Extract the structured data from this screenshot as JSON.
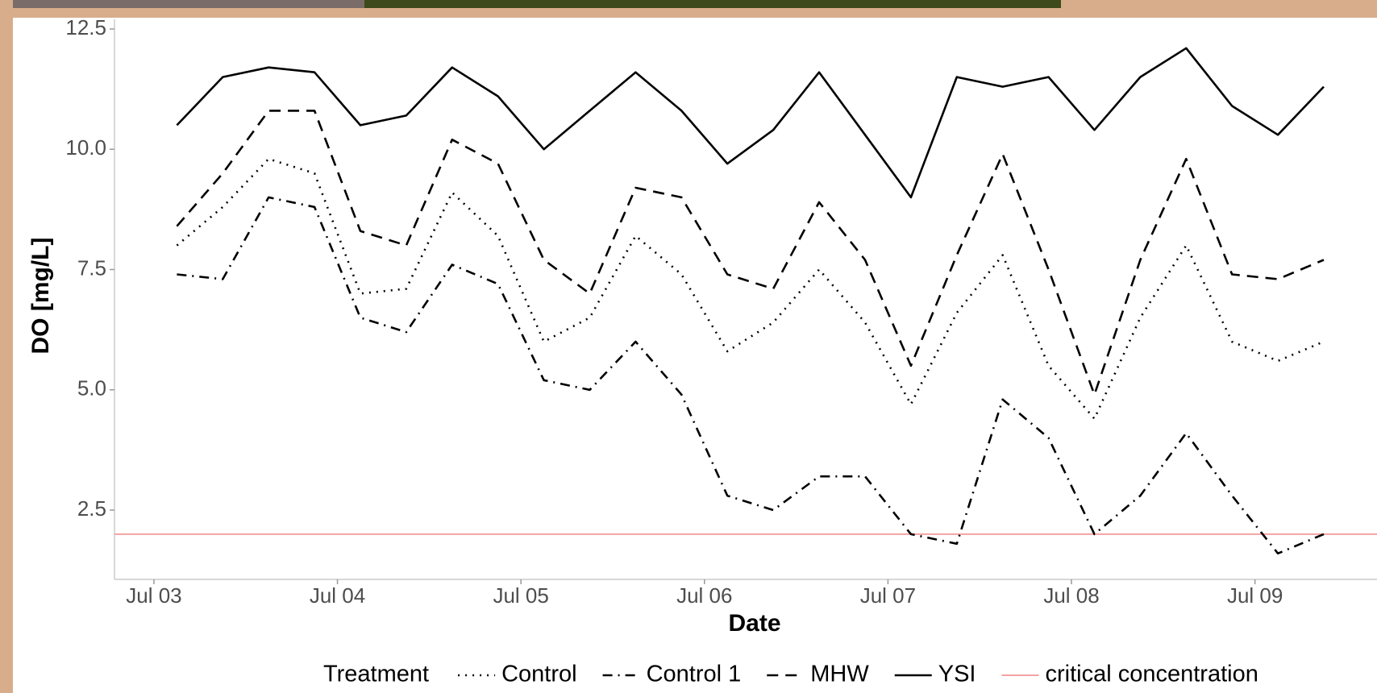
{
  "chart_data": {
    "type": "line",
    "xlabel": "Date",
    "ylabel": "DO [mg/L]",
    "legend_title": "Treatment",
    "legend_position": "bottom",
    "grid": false,
    "x": [
      0.125,
      0.375,
      0.625,
      0.875,
      1.125,
      1.375,
      1.625,
      1.875,
      2.125,
      2.375,
      2.625,
      2.875,
      3.125,
      3.375,
      3.625,
      3.875,
      4.125,
      4.375,
      4.625,
      4.875,
      5.125,
      5.375,
      5.625,
      5.875,
      6.125,
      6.375
    ],
    "xlim": [
      -0.215,
      6.665
    ],
    "xticks": [
      {
        "value": 0,
        "label": "Jul 03"
      },
      {
        "value": 1,
        "label": "Jul 04"
      },
      {
        "value": 2,
        "label": "Jul 05"
      },
      {
        "value": 3,
        "label": "Jul 06"
      },
      {
        "value": 4,
        "label": "Jul 07"
      },
      {
        "value": 5,
        "label": "Jul 08"
      },
      {
        "value": 6,
        "label": "Jul 09"
      }
    ],
    "ylim": [
      1.06,
      12.7
    ],
    "yticks": [
      {
        "value": 2.5,
        "label": "2.5"
      },
      {
        "value": 5,
        "label": "5.0"
      },
      {
        "value": 7.5,
        "label": "7.5"
      },
      {
        "value": 10,
        "label": "10.0"
      },
      {
        "value": 12.5,
        "label": "12.5"
      }
    ],
    "series": [
      {
        "name": "Control",
        "color": "#000000",
        "linestyle": "dotted",
        "values": [
          8.0,
          8.8,
          9.8,
          9.5,
          7.0,
          7.1,
          9.1,
          8.2,
          6.0,
          6.5,
          8.2,
          7.4,
          5.8,
          6.4,
          7.5,
          6.4,
          4.7,
          6.6,
          7.8,
          5.5,
          4.4,
          6.5,
          8.0,
          6.0,
          5.6,
          6.0
        ]
      },
      {
        "name": "Control 1",
        "color": "#000000",
        "linestyle": "dotdash",
        "values": [
          7.4,
          7.3,
          9.0,
          8.8,
          6.5,
          6.2,
          7.6,
          7.2,
          5.2,
          5.0,
          6.0,
          4.9,
          2.8,
          2.5,
          3.2,
          3.2,
          2.0,
          1.8,
          4.8,
          4.0,
          2.0,
          2.8,
          4.1,
          2.8,
          1.6,
          2.0
        ]
      },
      {
        "name": "MHW",
        "color": "#000000",
        "linestyle": "dashed",
        "values": [
          8.4,
          9.5,
          10.8,
          10.8,
          8.3,
          8.0,
          10.2,
          9.7,
          7.7,
          7.0,
          9.2,
          9.0,
          7.4,
          7.1,
          8.9,
          7.7,
          5.5,
          7.8,
          9.9,
          7.5,
          4.9,
          7.7,
          9.8,
          7.4,
          7.3,
          7.7
        ]
      },
      {
        "name": "YSI",
        "color": "#000000",
        "linestyle": "solid",
        "values": [
          10.5,
          11.5,
          11.7,
          11.6,
          10.5,
          10.7,
          11.7,
          11.1,
          10.0,
          10.8,
          11.6,
          10.8,
          9.7,
          10.4,
          11.6,
          10.3,
          9.0,
          11.5,
          11.3,
          11.5,
          10.4,
          11.5,
          12.1,
          10.9,
          10.3,
          11.3
        ]
      }
    ],
    "hlines": [
      {
        "name": "critical concentration",
        "value": 2,
        "color": "#f4a3a3"
      }
    ]
  }
}
